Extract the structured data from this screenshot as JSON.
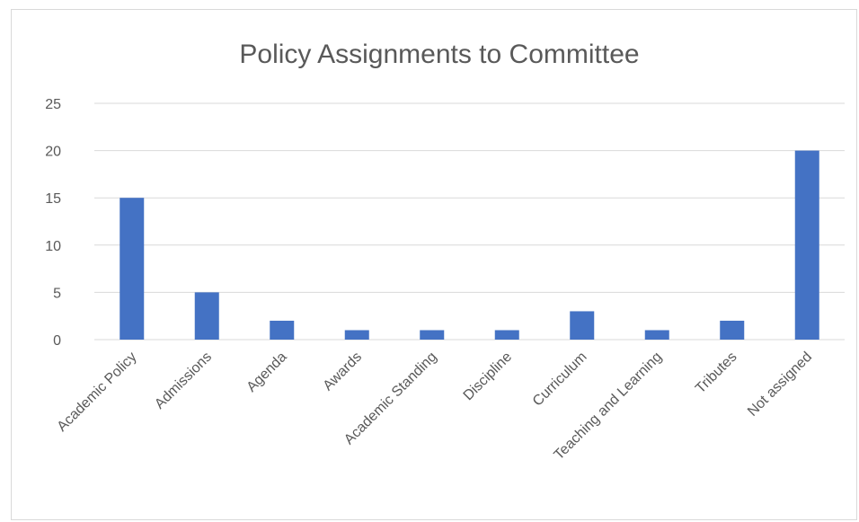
{
  "chart_data": {
    "type": "bar",
    "title": "Policy Assignments to Committee",
    "categories": [
      "Academic Policy",
      "Admissions",
      "Agenda",
      "Awards",
      "Academic Standing",
      "Discipline",
      "Curriculum",
      "Teaching and Learning",
      "Tributes",
      "Not assigned"
    ],
    "values": [
      15,
      5,
      2,
      1,
      1,
      1,
      3,
      1,
      2,
      20
    ],
    "ylim": [
      0,
      25
    ],
    "yticks": [
      0,
      5,
      10,
      15,
      20,
      25
    ],
    "xlabel": "",
    "ylabel": "",
    "grid": true,
    "legend": "none",
    "bar_color": "#4472c4",
    "grid_color": "#d9d9d9",
    "text_color": "#595959"
  }
}
